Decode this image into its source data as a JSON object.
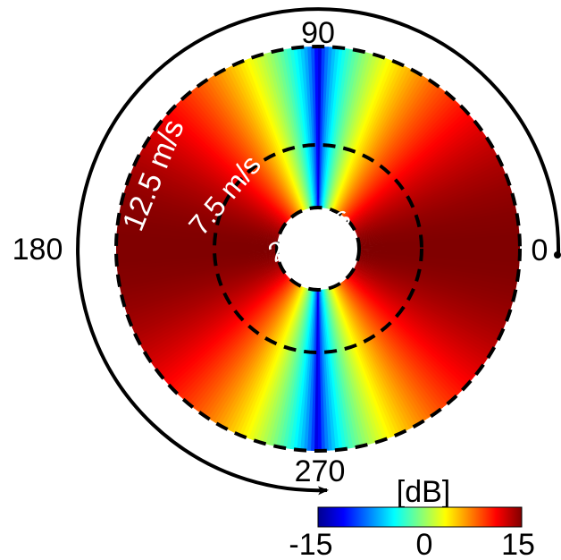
{
  "chart_data": {
    "type": "polar-heatmap",
    "title": "",
    "angle_labels": [
      "90",
      "180",
      "0",
      "270"
    ],
    "radial_rings": [
      {
        "label": "2.5 m/s",
        "value": 2.5
      },
      {
        "label": "7.5 m/s",
        "value": 7.5
      },
      {
        "label": "12.5 m/s",
        "value": 12.5
      }
    ],
    "radial_range": [
      1,
      12.5
    ],
    "value_range": [
      -15,
      15
    ],
    "colorbar": {
      "title": "[dB]",
      "ticks": [
        "-15",
        "0",
        "15"
      ],
      "colormap": "jet"
    },
    "direction": "counterclockwise"
  }
}
